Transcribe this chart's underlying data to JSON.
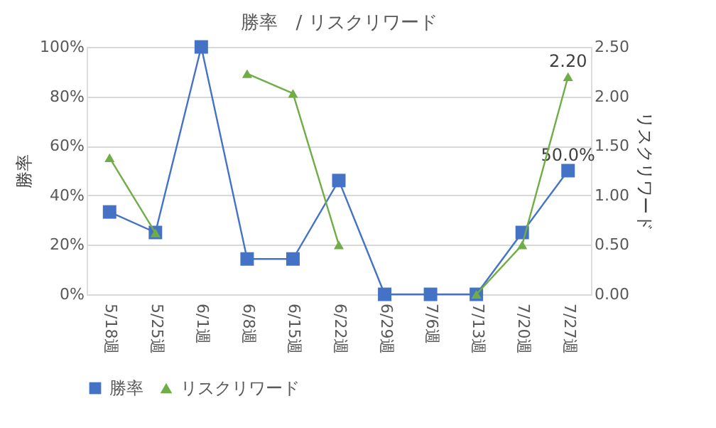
{
  "chart_data": {
    "type": "line",
    "title": "勝率　/ リスクリワード",
    "categories": [
      "5/18週",
      "5/25週",
      "6/1週",
      "6/8週",
      "6/15週",
      "6/22週",
      "6/29週",
      "7/6週",
      "7/13週",
      "7/20週",
      "7/27週"
    ],
    "series": [
      {
        "name": "勝率",
        "color": "#4472c4",
        "marker": "square",
        "values": [
          33.3,
          25,
          100,
          14.3,
          14.3,
          46,
          0,
          0,
          0,
          25,
          50
        ],
        "value_labels": [
          null,
          null,
          null,
          null,
          null,
          null,
          null,
          null,
          null,
          null,
          "50.0%"
        ]
      },
      {
        "name": "リスクリワード",
        "color": "#70ad47",
        "marker": "triangle",
        "axis": "y2",
        "values": [
          1.38,
          0.62,
          null,
          2.23,
          2.03,
          0.5,
          null,
          null,
          0,
          0.5,
          2.2
        ],
        "value_labels": [
          null,
          null,
          null,
          null,
          null,
          null,
          null,
          null,
          null,
          null,
          "2.20"
        ]
      }
    ],
    "ylabel": "勝率",
    "y2label": "リスクリワード",
    "ylim": [
      0,
      100
    ],
    "yticks": [
      {
        "value": 0,
        "label": "0%"
      },
      {
        "value": 20,
        "label": "20%"
      },
      {
        "value": 40,
        "label": "40%"
      },
      {
        "value": 60,
        "label": "60%"
      },
      {
        "value": 80,
        "label": "80%"
      },
      {
        "value": 100,
        "label": "100%"
      }
    ],
    "y2lim": [
      0,
      2.5
    ],
    "y2ticks": [
      {
        "value": 0,
        "label": "0.00"
      },
      {
        "value": 0.5,
        "label": "0.50"
      },
      {
        "value": 1,
        "label": "1.00"
      },
      {
        "value": 1.5,
        "label": "1.50"
      },
      {
        "value": 2,
        "label": "2.00"
      },
      {
        "value": 2.5,
        "label": "2.50"
      }
    ],
    "grid": "y",
    "legend": "bottom",
    "line_style": "solid"
  }
}
